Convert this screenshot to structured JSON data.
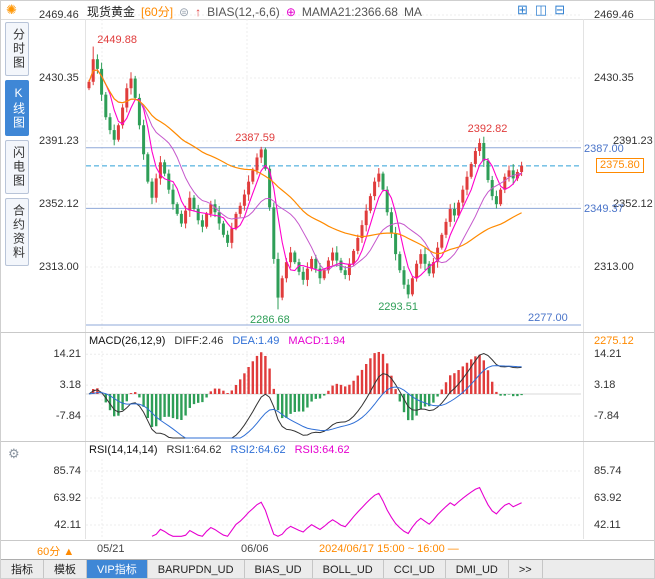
{
  "header": {
    "symbol": "现货黄金",
    "period": "[60分]",
    "indicator_bias": "BIAS(12,-6,6)",
    "indicator_mama": "MAMA21:2366.68",
    "indicator_ma": "MA"
  },
  "icons": {
    "app": "✺",
    "settings_circle": "⊜",
    "trend_up": "↑",
    "mama_dot": "⊕",
    "layout_grid": "⊞",
    "layout_split_v": "◫",
    "layout_split_h": "⊟",
    "gear": "⚙",
    "period_up": "▲"
  },
  "sidebar": {
    "items": [
      {
        "label": "分时图",
        "name": "time-share-chart",
        "active": false
      },
      {
        "label": "K线图",
        "name": "kline-chart",
        "active": true
      },
      {
        "label": "闪电图",
        "name": "flash-chart",
        "active": false
      },
      {
        "label": "合约资料",
        "name": "contract-info",
        "active": false
      }
    ]
  },
  "main_axis": {
    "labels": [
      "2469.46",
      "2430.35",
      "2391.23",
      "2352.12",
      "2313.00"
    ],
    "values": [
      2469.46,
      2430.35,
      2391.23,
      2352.12,
      2313.0
    ],
    "paired_with_blue": [
      2391.23,
      2352.12
    ]
  },
  "price_labels": {
    "high_open": "2449.88",
    "peak_mid": "2387.59",
    "peak_recent": "2392.82",
    "low_main": "2286.68",
    "low_second": "2293.51",
    "level_resistance": "2387.00",
    "level_support": "2349.37",
    "level_lower": "2277.00",
    "last_price": "2375.80",
    "macd_side_value": "2275.12"
  },
  "macd_panel": {
    "title": "MACD(26,12,9)",
    "diff_label": "DIFF:2.46",
    "dea_label": "DEA:1.49",
    "macd_label": "MACD:1.94",
    "axis": [
      "14.21",
      "3.18",
      "-7.84"
    ]
  },
  "rsi_panel": {
    "title": "RSI(14,14,14)",
    "rsi1_label": "RSI1:64.62",
    "rsi2_label": "RSI2:64.62",
    "rsi3_label": "RSI3:64.62",
    "axis": [
      "85.74",
      "63.92",
      "42.11"
    ]
  },
  "time_axis": {
    "period": "60分",
    "tick1": "05/21",
    "tick2": "06/06",
    "range": "2024/06/17 15:00 ~ 16:00 —"
  },
  "bottom_tabs": [
    {
      "label": "指标",
      "name": "indicators"
    },
    {
      "label": "模板",
      "name": "templates"
    },
    {
      "label": "VIP指标",
      "name": "vip-indicators"
    },
    {
      "label": "BARUPDN_UD",
      "name": "barupdn-ud"
    },
    {
      "label": "BIAS_UD",
      "name": "bias-ud"
    },
    {
      "label": "BOLL_UD",
      "name": "boll-ud"
    },
    {
      "label": "CCI_UD",
      "name": "cci-ud"
    },
    {
      "label": "DMI_UD",
      "name": "dmi-ud"
    },
    {
      "label": ">>",
      "name": "more-tabs"
    }
  ],
  "bottom_tabs_active": 2,
  "colors": {
    "up": "#e03c3c",
    "down": "#2e9e57",
    "ma_fast": "#ff00cc",
    "ma_mid": "#c558cc",
    "ma_slow": "#ff8a00",
    "level_line": "#8fa8d8",
    "last_line": "#2fa0d8",
    "accent_orange": "#ff8a00",
    "accent_blue": "#2f6fd6",
    "magenta": "#e600d0",
    "blue_label": "#4a74c9",
    "active_tab_bg": "#3f87d6"
  },
  "chart_data": {
    "type": "candlestick",
    "symbol": "现货黄金",
    "interval": "60min",
    "title": "现货黄金 [60分]",
    "price_axis_ticks": [
      2469.46,
      2430.35,
      2391.23,
      2352.12,
      2313.0
    ],
    "open_first": 2424,
    "closes": [
      2428,
      2442,
      2436,
      2420,
      2406,
      2398,
      2392,
      2401,
      2412,
      2424,
      2430,
      2418,
      2401,
      2383,
      2366,
      2356,
      2368,
      2378,
      2371,
      2361,
      2352,
      2346,
      2340,
      2348,
      2356,
      2349,
      2342,
      2338,
      2346,
      2352,
      2347,
      2340,
      2333,
      2328,
      2337,
      2346,
      2351,
      2358,
      2366,
      2373,
      2381,
      2386,
      2374,
      2350,
      2318,
      2294,
      2306,
      2316,
      2322,
      2316,
      2310,
      2305,
      2312,
      2318,
      2312,
      2306,
      2311,
      2317,
      2322,
      2317,
      2311,
      2308,
      2315,
      2323,
      2331,
      2339,
      2348,
      2357,
      2366,
      2371,
      2361,
      2347,
      2334,
      2321,
      2311,
      2302,
      2296,
      2306,
      2315,
      2321,
      2315,
      2309,
      2316,
      2325,
      2333,
      2341,
      2349,
      2345,
      2353,
      2361,
      2369,
      2377,
      2385,
      2390,
      2379,
      2367,
      2357,
      2352,
      2361,
      2369,
      2373,
      2368,
      2372,
      2375.8
    ],
    "wick_overrides": {
      "1": {
        "high": 2449.88
      },
      "15": {
        "low": 2352.0
      },
      "41": {
        "high": 2387.59
      },
      "45": {
        "low": 2286.68
      },
      "76": {
        "low": 2293.51
      },
      "93": {
        "high": 2392.82
      },
      "97": {
        "low": 2349.37
      }
    },
    "levels": {
      "resistance": 2387.0,
      "support": 2349.37,
      "lower": 2277.0,
      "last_price": 2375.8
    },
    "moving_averages": {
      "mama21": 2366.68
    },
    "macd": {
      "params": [
        26,
        12,
        9
      ],
      "diff": 2.46,
      "dea": 1.49,
      "macd": 1.94,
      "axis_ticks": [
        14.21,
        3.18,
        -7.84
      ]
    },
    "rsi": {
      "params": [
        14,
        14,
        14
      ],
      "rsi1": 64.62,
      "rsi2": 64.62,
      "rsi3": 64.62,
      "axis_ticks": [
        85.74,
        63.92,
        42.11
      ]
    },
    "time_ticks": [
      "05/21",
      "06/06"
    ],
    "time_range": "2024/06/17 15:00 ~ 16:00"
  }
}
